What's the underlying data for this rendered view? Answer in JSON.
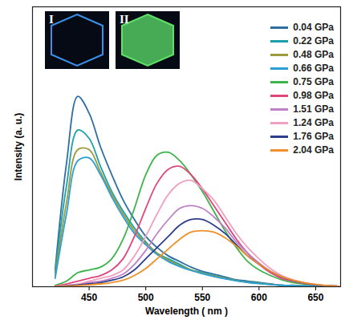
{
  "chart_data": {
    "type": "line",
    "x_label": "Wavelength ( nm )",
    "y_label": "Intensity (a. u.)",
    "xlim": [
      400,
      672
    ],
    "xticks": [
      450,
      500,
      550,
      600,
      650
    ],
    "ylim": [
      0,
      100
    ],
    "tick_labels": "x",
    "legend": "upper right",
    "annotations": [
      {
        "text": "I"
      },
      {
        "text": "II"
      }
    ],
    "x": [
      420,
      430,
      440,
      450,
      460,
      470,
      480,
      490,
      500,
      510,
      520,
      530,
      540,
      550,
      560,
      570,
      580,
      590,
      600,
      610,
      620,
      630,
      640,
      650,
      660,
      670
    ],
    "series": [
      {
        "name": "0.04 GPa",
        "color": "#2e6fa3",
        "values": [
          6,
          44,
          68,
          62,
          50,
          40,
          31,
          24,
          18,
          14,
          11,
          9,
          7,
          5.5,
          4.5,
          3.5,
          2.5,
          2,
          1.5,
          1,
          0.5,
          0.5,
          0.3,
          0.2,
          0.1,
          0.1
        ]
      },
      {
        "name": "0.22 GPa",
        "color": "#1aa0a8",
        "values": [
          5,
          36,
          56,
          53,
          43,
          34,
          27,
          21,
          16,
          12,
          10,
          8,
          6,
          5,
          4,
          3,
          2.2,
          1.7,
          1.3,
          0.9,
          0.5,
          0.4,
          0.3,
          0.2,
          0.1,
          0.1
        ]
      },
      {
        "name": "0.48 GPa",
        "color": "#9c9a3a",
        "values": [
          4,
          30,
          49,
          49,
          41,
          33,
          26,
          20,
          15.5,
          12,
          9.5,
          7.5,
          6,
          4.8,
          3.8,
          3,
          2.2,
          1.6,
          1.2,
          0.8,
          0.5,
          0.4,
          0.3,
          0.2,
          0.1,
          0.1
        ]
      },
      {
        "name": "0.66 GPa",
        "color": "#2a9fd6",
        "values": [
          3,
          26,
          45,
          46,
          40,
          32,
          25,
          19,
          15,
          11.5,
          9,
          7.2,
          5.8,
          4.6,
          3.6,
          2.8,
          2.1,
          1.5,
          1.1,
          0.8,
          0.5,
          0.4,
          0.3,
          0.2,
          0.1,
          0.1
        ]
      },
      {
        "name": "0.75 GPa",
        "color": "#3cb44b",
        "values": [
          0.5,
          2,
          5,
          6,
          7,
          10,
          17,
          28,
          40,
          47,
          48,
          45,
          40,
          34,
          27,
          20,
          14,
          9,
          6,
          4,
          2.5,
          1.5,
          1,
          0.6,
          0.3,
          0.2
        ]
      },
      {
        "name": "0.98 GPa",
        "color": "#e0457b",
        "values": [
          0.3,
          1,
          2,
          3,
          4,
          6,
          10,
          18,
          28,
          37,
          42,
          43,
          40,
          35,
          29,
          23,
          17,
          12,
          8,
          5,
          3,
          2,
          1.2,
          0.7,
          0.4,
          0.2
        ]
      },
      {
        "name": "1.51 GPa",
        "color": "#c080c8",
        "values": [
          0.2,
          0.4,
          0.8,
          1.5,
          2,
          3,
          4.5,
          8,
          13,
          19,
          24,
          28,
          29,
          28,
          25,
          21,
          16,
          12,
          8.5,
          5.5,
          3.5,
          2.2,
          1.3,
          0.7,
          0.4,
          0.2
        ]
      },
      {
        "name": "1.24 GPa",
        "color": "#f0a0c0",
        "values": [
          0.2,
          0.5,
          1,
          2,
          3,
          4,
          6,
          11,
          18,
          26,
          33,
          37,
          38,
          35,
          31,
          25,
          19,
          14,
          10,
          6.5,
          4,
          2.5,
          1.5,
          0.8,
          0.4,
          0.2
        ]
      },
      {
        "name": "1.76 GPa",
        "color": "#2c3e8c",
        "values": [
          0.1,
          0.3,
          0.6,
          1,
          1.5,
          2.3,
          3.5,
          6,
          10,
          14,
          18,
          22,
          24,
          24,
          22,
          19,
          15,
          11,
          8,
          5.5,
          3.5,
          2.2,
          1.3,
          0.7,
          0.4,
          0.2
        ]
      },
      {
        "name": "2.04 GPa",
        "color": "#f0902a",
        "values": [
          0.1,
          0.2,
          0.4,
          0.7,
          1,
          1.5,
          2.3,
          4,
          6.5,
          10,
          13.5,
          17,
          19.5,
          20,
          19.5,
          17.5,
          14.5,
          11,
          8,
          5.5,
          3.6,
          2.3,
          1.4,
          0.8,
          0.4,
          0.2
        ]
      }
    ]
  }
}
